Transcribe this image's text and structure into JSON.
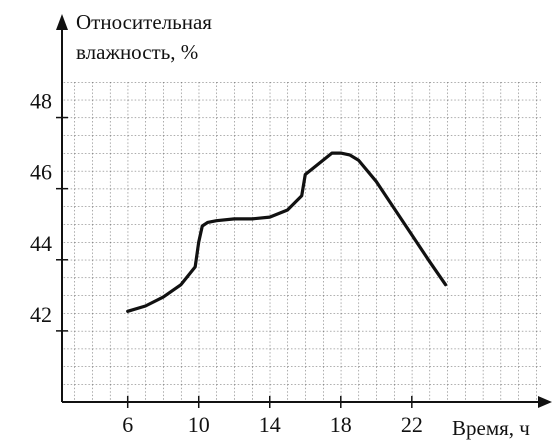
{
  "chart_data": {
    "type": "line",
    "y_label": [
      "Относительная",
      "влажность, %"
    ],
    "x_label": "Время, ч",
    "x": [
      6,
      7,
      8,
      9,
      9.8,
      10,
      10.2,
      10.5,
      11,
      12,
      13,
      14,
      15,
      15.8,
      16,
      16.5,
      17,
      17.5,
      18,
      18.5,
      19,
      20,
      21,
      22,
      23,
      23.9
    ],
    "series": [
      {
        "color": "#111111",
        "values": [
          42.55,
          42.7,
          42.95,
          43.3,
          43.8,
          44.5,
          44.95,
          45.05,
          45.1,
          45.15,
          45.15,
          45.2,
          45.4,
          45.8,
          46.4,
          46.6,
          46.8,
          47.0,
          47.0,
          46.95,
          46.8,
          46.2,
          45.45,
          44.7,
          43.95,
          43.3
        ]
      }
    ],
    "xlim": [
      2.3,
      29.5
    ],
    "ylim": [
      40,
      49
    ],
    "xticks": [
      6,
      10,
      14,
      18,
      22
    ],
    "yticks": [
      42,
      44,
      46,
      48
    ],
    "grid": true
  }
}
